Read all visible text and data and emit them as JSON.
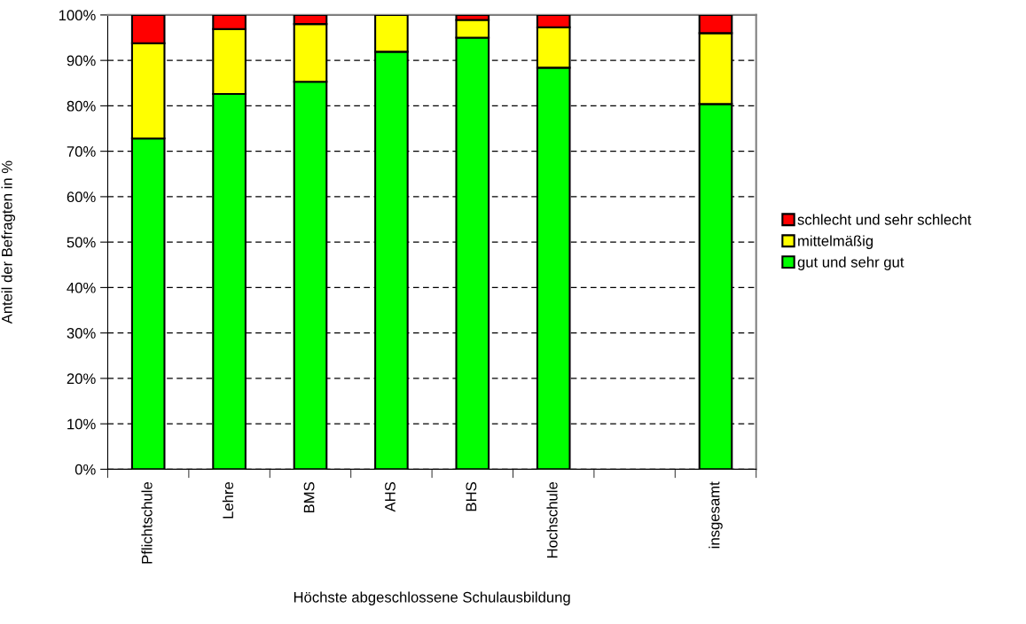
{
  "chart_data": {
    "type": "bar",
    "stacked": true,
    "xlabel": "Höchste abgeschlossene Schulausbildung",
    "ylabel": "Anteil der Befragten in %",
    "categories": [
      "Pflichtschule",
      "Lehre",
      "BMS",
      "AHS",
      "BHS",
      "Hochschule",
      null,
      "insgesamt"
    ],
    "series": [
      {
        "name": "gut und sehr gut",
        "color": "#00ff00",
        "values": [
          72.8,
          82.6,
          85.3,
          91.9,
          95.0,
          88.4,
          null,
          80.4
        ]
      },
      {
        "name": "mittelmäßig",
        "color": "#ffff00",
        "values": [
          21.0,
          14.3,
          12.7,
          8.1,
          3.9,
          8.9,
          null,
          15.6
        ]
      },
      {
        "name": "schlecht und sehr schlecht",
        "color": "#ff0000",
        "values": [
          6.2,
          3.1,
          2.0,
          null,
          1.1,
          2.7,
          null,
          4.0
        ]
      }
    ],
    "ylim": [
      0,
      100
    ],
    "yticks": [
      {
        "value": 0,
        "label": "0%"
      },
      {
        "value": 10,
        "label": "10%"
      },
      {
        "value": 20,
        "label": "20%"
      },
      {
        "value": 30,
        "label": "30%"
      },
      {
        "value": 40,
        "label": "40%"
      },
      {
        "value": 50,
        "label": "50%"
      },
      {
        "value": 60,
        "label": "60%"
      },
      {
        "value": 70,
        "label": "70%"
      },
      {
        "value": 80,
        "label": "80%"
      },
      {
        "value": 90,
        "label": "90%"
      },
      {
        "value": 100,
        "label": "100%"
      }
    ],
    "grid": "y",
    "legend": "right"
  }
}
